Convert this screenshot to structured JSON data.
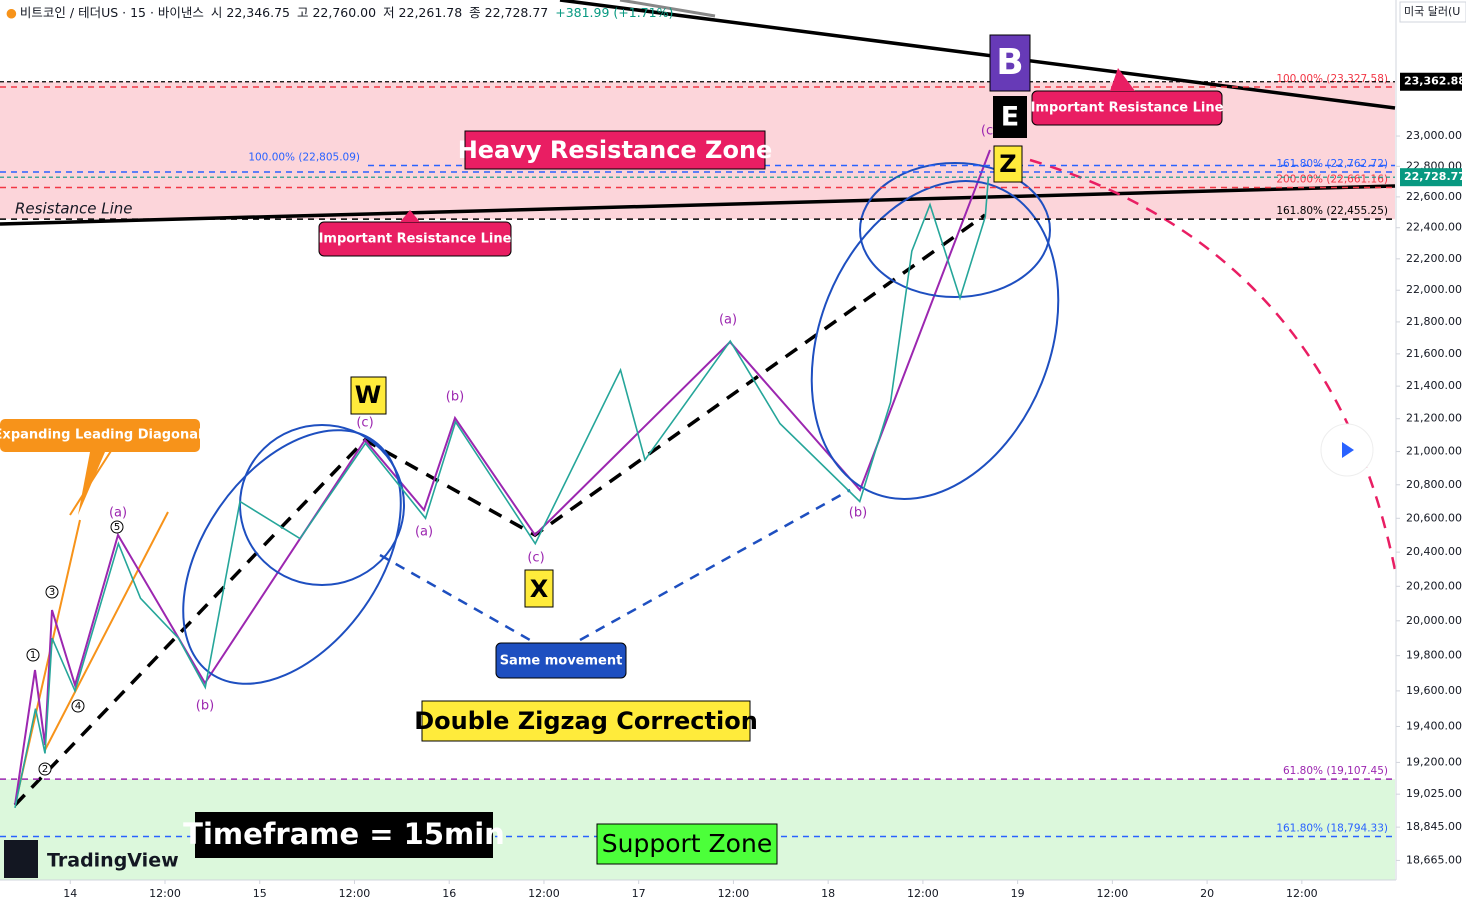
{
  "header": {
    "symbol": "비트코인 / 테더US · 15 · 바이낸스",
    "open": "시 22,346.75",
    "high": "고 22,760.00",
    "low": "저 22,261.78",
    "close": "종 22,728.77",
    "change": "+381.99 (+1.71%)"
  },
  "currency": "미국 달러(U",
  "brand": "TradingView",
  "annotations": [
    "Expanding Leading Diagonal",
    "Important Resistance Line",
    "Important Resistance Line",
    "Heavy Resistance Zone",
    "Resistance Line",
    "Same movement",
    "Double Zigzag Correction",
    "Timeframe = 15min",
    "Support Zone"
  ],
  "wave_labels": [
    "(a)",
    "(c)",
    "(b)",
    "(a)",
    "(c)",
    "(a)",
    "(b)",
    "(b)",
    "(c"
  ],
  "impulse_labels": [
    "1",
    "2",
    "3",
    "4",
    "5"
  ],
  "wave_letters": [
    "W",
    "X",
    "Z",
    "E",
    "B"
  ],
  "chart_data": {
    "type": "line",
    "log_scale": true,
    "grid": false,
    "color": "#26a69a",
    "xlim": [
      -8.9,
      167.8
    ],
    "ylim": [
      18560,
      23920
    ],
    "x": [
      -7,
      -4.4,
      -3.2,
      -2.3,
      0.6,
      6.1,
      8.9,
      13.7,
      17.1,
      21.5,
      29.1,
      37.4,
      45,
      48.8,
      58.9,
      69.7,
      72.8,
      83.6,
      89.9,
      100,
      103.9,
      106.6,
      108.9,
      112.7,
      115.9,
      116.3
    ],
    "values": [
      18950,
      19500,
      19250,
      19900,
      19600,
      20450,
      20130,
      19900,
      19620,
      20700,
      20480,
      21050,
      20600,
      21180,
      20450,
      21500,
      20950,
      21680,
      21170,
      20700,
      21300,
      22250,
      22550,
      21950,
      22470,
      22730
    ],
    "xticks": [
      {
        "value": 0,
        "label": "14"
      },
      {
        "value": 12,
        "label": "12:00"
      },
      {
        "value": 24,
        "label": "15"
      },
      {
        "value": 36,
        "label": "12:00"
      },
      {
        "value": 48,
        "label": "16"
      },
      {
        "value": 60,
        "label": "12:00"
      },
      {
        "value": 72,
        "label": "17"
      },
      {
        "value": 84,
        "label": "12:00"
      },
      {
        "value": 96,
        "label": "18"
      },
      {
        "value": 108,
        "label": "12:00"
      },
      {
        "value": 120,
        "label": "19"
      },
      {
        "value": 132,
        "label": "12:00"
      },
      {
        "value": 144,
        "label": "20"
      },
      {
        "value": 156,
        "label": "12:00"
      }
    ],
    "yticks": [
      {
        "value": 23000,
        "label": "23,000.00"
      },
      {
        "value": 22800,
        "label": "22,800.00"
      },
      {
        "value": 22600,
        "label": "22,600.00"
      },
      {
        "value": 22400,
        "label": "22,400.00"
      },
      {
        "value": 22200,
        "label": "22,200.00"
      },
      {
        "value": 22000,
        "label": "22,000.00"
      },
      {
        "value": 21800,
        "label": "21,800.00"
      },
      {
        "value": 21600,
        "label": "21,600.00"
      },
      {
        "value": 21400,
        "label": "21,400.00"
      },
      {
        "value": 21200,
        "label": "21,200.00"
      },
      {
        "value": 21000,
        "label": "21,000.00"
      },
      {
        "value": 20800,
        "label": "20,800.00"
      },
      {
        "value": 20600,
        "label": "20,600.00"
      },
      {
        "value": 20400,
        "label": "20,400.00"
      },
      {
        "value": 20200,
        "label": "20,200.00"
      },
      {
        "value": 20000,
        "label": "20,000.00"
      },
      {
        "value": 19800,
        "label": "19,800.00"
      },
      {
        "value": 19600,
        "label": "19,600.00"
      },
      {
        "value": 19400,
        "label": "19,400.00"
      },
      {
        "value": 19200,
        "label": "19,200.00"
      },
      {
        "value": 19025,
        "label": "19,025.00"
      },
      {
        "value": 18845,
        "label": "18,845.00"
      },
      {
        "value": 18665,
        "label": "18,665.00"
      }
    ],
    "zones": [
      {
        "from": 22455.25,
        "to": 23362.88,
        "color": "#fcd5da"
      },
      {
        "from": 18560,
        "to": 19107.45,
        "color": "#dcf8dc"
      }
    ],
    "levels": [
      {
        "value": 23327.58,
        "label": "100.00% (23,327.58)",
        "color": "#f23645",
        "side": "right"
      },
      {
        "value": 22805.09,
        "label": "100.00% (22,805.09)",
        "color": "#2962ff",
        "side": "left"
      },
      {
        "value": 22762.72,
        "label": "161.80% (22,762.72)",
        "color": "#2962ff",
        "side": "right"
      },
      {
        "value": 22661.16,
        "label": "200.00% (22,661.16)",
        "color": "#f23645",
        "side": "right"
      },
      {
        "value": 22455.25,
        "label": "161.80% (22,455.25)",
        "color": "#000000",
        "side": "right"
      },
      {
        "value": 19107.45,
        "label": "61.80% (19,107.45)",
        "color": "#9c27b0",
        "side": "right"
      },
      {
        "value": 18794.33,
        "label": "161.80% (18,794.33)",
        "color": "#2962ff",
        "side": "right"
      }
    ],
    "badges": [
      {
        "value": 23362.88,
        "label": "23,362.88",
        "color": "#000000"
      },
      {
        "value": 22728.77,
        "label": "22,728.77",
        "color": "#089981"
      }
    ]
  }
}
